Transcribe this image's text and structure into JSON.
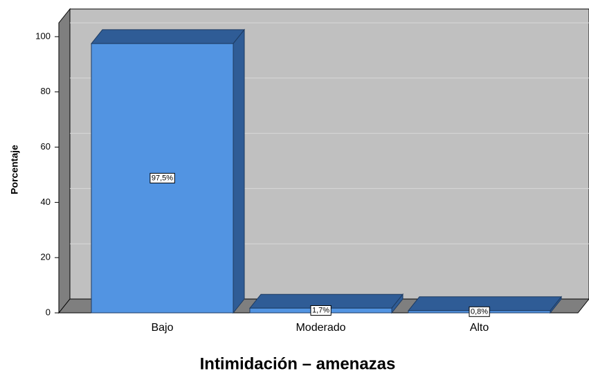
{
  "chart_data": {
    "type": "bar3d",
    "xlabel": "Intimidación – amenazas",
    "ylabel": "Porcentaje",
    "categories": [
      "Bajo",
      "Moderado",
      "Alto"
    ],
    "values": [
      97.5,
      1.7,
      0.8
    ],
    "value_labels": [
      "97,5%",
      "1,7%",
      "0,8%"
    ],
    "color": "#5294e2",
    "ylim": [
      0,
      105
    ],
    "yticks": [
      0,
      20,
      40,
      60,
      80,
      100
    ],
    "grid": true
  }
}
